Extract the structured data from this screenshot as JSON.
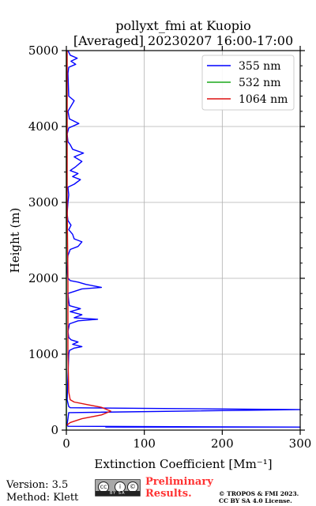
{
  "chart_data": {
    "type": "line",
    "title": "pollyxt_fmi at Kuopio",
    "subtitle": "[Averaged] 20230207 16:00-17:00",
    "xlabel": "Extinction Coefficient [Mm⁻¹]",
    "ylabel": "Height (m)",
    "xlim": [
      0,
      300
    ],
    "ylim": [
      0,
      5000
    ],
    "xticks": [
      0,
      100,
      200,
      300
    ],
    "yticks": [
      0,
      1000,
      2000,
      3000,
      4000,
      5000
    ],
    "grid": true,
    "legend_position": "top-right",
    "series": [
      {
        "name": "355 nm",
        "color": "#0000ff",
        "points": [
          [
            50,
            40
          ],
          [
            300,
            40
          ],
          [
            2,
            50
          ],
          [
            1,
            80
          ],
          [
            2,
            150
          ],
          [
            3,
            230
          ],
          [
            300,
            270
          ],
          [
            5,
            295
          ],
          [
            3,
            310
          ],
          [
            1,
            400
          ],
          [
            2,
            700
          ],
          [
            3,
            1000
          ],
          [
            4,
            1050
          ],
          [
            10,
            1080
          ],
          [
            20,
            1100
          ],
          [
            8,
            1130
          ],
          [
            15,
            1160
          ],
          [
            6,
            1190
          ],
          [
            3,
            1220
          ],
          [
            2,
            1300
          ],
          [
            4,
            1400
          ],
          [
            15,
            1440
          ],
          [
            40,
            1460
          ],
          [
            10,
            1480
          ],
          [
            20,
            1520
          ],
          [
            5,
            1560
          ],
          [
            18,
            1600
          ],
          [
            4,
            1640
          ],
          [
            3,
            1700
          ],
          [
            2,
            1800
          ],
          [
            20,
            1860
          ],
          [
            45,
            1880
          ],
          [
            25,
            1920
          ],
          [
            15,
            1950
          ],
          [
            5,
            1970
          ],
          [
            2,
            2000
          ],
          [
            1,
            2100
          ],
          [
            2,
            2300
          ],
          [
            5,
            2380
          ],
          [
            15,
            2420
          ],
          [
            20,
            2480
          ],
          [
            10,
            2520
          ],
          [
            8,
            2580
          ],
          [
            3,
            2640
          ],
          [
            6,
            2700
          ],
          [
            2,
            2760
          ],
          [
            1,
            2850
          ],
          [
            2,
            3000
          ],
          [
            3,
            3100
          ],
          [
            2,
            3200
          ],
          [
            10,
            3240
          ],
          [
            18,
            3300
          ],
          [
            8,
            3340
          ],
          [
            15,
            3380
          ],
          [
            5,
            3420
          ],
          [
            12,
            3470
          ],
          [
            20,
            3540
          ],
          [
            10,
            3600
          ],
          [
            22,
            3650
          ],
          [
            8,
            3700
          ],
          [
            5,
            3760
          ],
          [
            2,
            3800
          ],
          [
            1,
            3900
          ],
          [
            3,
            3980
          ],
          [
            16,
            4040
          ],
          [
            4,
            4100
          ],
          [
            2,
            4200
          ],
          [
            10,
            4340
          ],
          [
            3,
            4400
          ],
          [
            2,
            4700
          ],
          [
            3,
            4780
          ],
          [
            12,
            4820
          ],
          [
            6,
            4860
          ],
          [
            14,
            4900
          ],
          [
            5,
            4940
          ],
          [
            2,
            5000
          ]
        ]
      },
      {
        "name": "532 nm",
        "color": "#1aa81a",
        "points": [
          [
            0,
            0
          ],
          [
            0,
            5000
          ]
        ]
      },
      {
        "name": "1064 nm",
        "color": "#dd1111",
        "points": [
          [
            0,
            60
          ],
          [
            5,
            100
          ],
          [
            20,
            150
          ],
          [
            45,
            200
          ],
          [
            57,
            250
          ],
          [
            45,
            300
          ],
          [
            25,
            340
          ],
          [
            10,
            370
          ],
          [
            5,
            400
          ],
          [
            3,
            500
          ],
          [
            2,
            1000
          ],
          [
            2,
            2000
          ],
          [
            1,
            3000
          ],
          [
            1,
            4000
          ],
          [
            1,
            5000
          ]
        ]
      }
    ]
  },
  "footer": {
    "version": "Version: 3.5",
    "method": "Method: Klett",
    "license_badge": "BY SA",
    "preliminary_line1": "Preliminary",
    "preliminary_line2": "Results.",
    "copyright_line1": "© TROPOS & FMI 2023.",
    "copyright_line2": "CC BY SA 4.0 License."
  }
}
